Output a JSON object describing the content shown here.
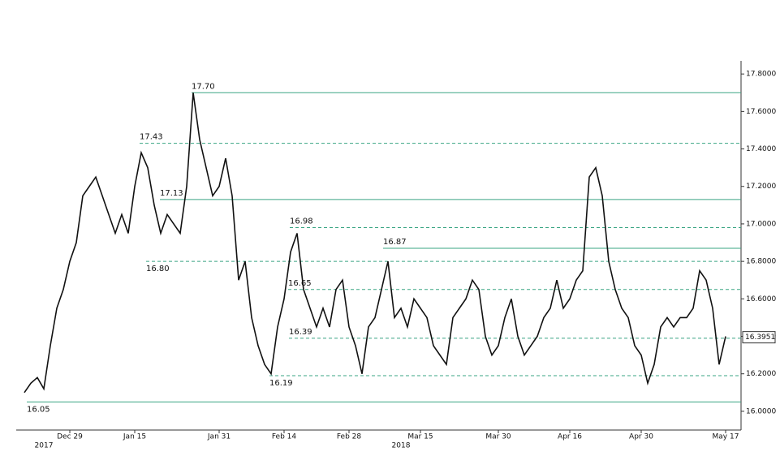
{
  "chart_data": {
    "type": "line",
    "categories": [
      null,
      null,
      null,
      null,
      null,
      null,
      null,
      "Dec 29",
      null,
      null,
      null,
      null,
      null,
      null,
      null,
      null,
      null,
      "Jan 15",
      null,
      null,
      null,
      null,
      null,
      null,
      null,
      null,
      null,
      null,
      null,
      null,
      "Jan 31",
      null,
      null,
      null,
      null,
      null,
      null,
      null,
      null,
      null,
      "Feb 14",
      null,
      null,
      null,
      null,
      null,
      null,
      null,
      null,
      null,
      "Feb 28",
      null,
      null,
      null,
      null,
      null,
      null,
      null,
      null,
      null,
      null,
      "Mar 15",
      null,
      null,
      null,
      null,
      null,
      null,
      null,
      null,
      null,
      null,
      null,
      "Mar 30",
      null,
      null,
      null,
      null,
      null,
      null,
      null,
      null,
      null,
      null,
      "Apr 16",
      null,
      null,
      null,
      null,
      null,
      null,
      null,
      null,
      null,
      null,
      "Apr 30",
      null,
      null,
      null,
      null,
      null,
      null,
      null,
      null,
      null,
      null,
      null,
      null,
      "May 17"
    ],
    "year_categories": [
      null,
      null,
      null,
      "2017",
      null,
      null,
      null,
      null,
      null,
      null,
      null,
      null,
      null,
      null,
      null,
      null,
      null,
      null,
      null,
      null,
      null,
      null,
      null,
      null,
      null,
      null,
      null,
      null,
      null,
      null,
      null,
      null,
      null,
      null,
      null,
      null,
      null,
      null,
      null,
      null,
      null,
      null,
      null,
      null,
      null,
      null,
      null,
      null,
      null,
      null,
      null,
      null,
      null,
      null,
      null,
      null,
      null,
      null,
      "2018",
      null,
      null,
      null,
      null,
      null,
      null,
      null,
      null,
      null,
      null,
      null,
      null,
      null,
      null,
      null,
      null,
      null,
      null,
      null,
      null,
      null,
      null,
      null,
      null,
      null,
      null,
      null,
      null,
      null,
      null,
      null,
      null,
      null,
      null,
      null,
      null,
      null,
      null,
      null,
      null,
      null,
      null,
      null,
      null,
      null,
      null,
      null,
      null,
      null,
      null
    ],
    "series": [
      {
        "color": "#111111",
        "values": [
          16.1,
          16.15,
          16.18,
          16.12,
          16.35,
          16.55,
          16.65,
          16.8,
          16.9,
          17.15,
          17.2,
          17.25,
          17.15,
          17.05,
          16.95,
          17.05,
          16.95,
          17.2,
          17.38,
          17.3,
          17.1,
          16.95,
          17.05,
          17.0,
          16.95,
          17.2,
          17.7,
          17.45,
          17.3,
          17.15,
          17.2,
          17.35,
          17.15,
          16.7,
          16.8,
          16.5,
          16.35,
          16.25,
          16.2,
          16.45,
          16.6,
          16.85,
          16.95,
          16.65,
          16.55,
          16.45,
          16.55,
          16.45,
          16.65,
          16.7,
          16.45,
          16.35,
          16.2,
          16.45,
          16.5,
          16.65,
          16.8,
          16.5,
          16.55,
          16.45,
          16.6,
          16.55,
          16.5,
          16.35,
          16.3,
          16.25,
          16.5,
          16.55,
          16.6,
          16.7,
          16.65,
          16.4,
          16.3,
          16.35,
          16.5,
          16.6,
          16.4,
          16.3,
          16.35,
          16.4,
          16.5,
          16.55,
          16.7,
          16.55,
          16.6,
          16.7,
          16.75,
          17.25,
          17.3,
          17.15,
          16.8,
          16.65,
          16.55,
          16.5,
          16.35,
          16.3,
          16.15,
          16.25,
          16.45,
          16.5,
          16.45,
          16.5,
          16.5,
          16.55,
          16.75,
          16.7,
          16.55,
          16.25,
          16.4
        ]
      }
    ],
    "levels": [
      {
        "value": 17.7,
        "label": "17.70",
        "style": "solid"
      },
      {
        "value": 17.43,
        "label": "17.43",
        "style": "dashed"
      },
      {
        "value": 17.13,
        "label": "17.13",
        "style": "solid"
      },
      {
        "value": 16.98,
        "label": "16.98",
        "style": "dashed"
      },
      {
        "value": 16.87,
        "label": "16.87",
        "style": "solid"
      },
      {
        "value": 16.8,
        "label": "16.80",
        "style": "dashed"
      },
      {
        "value": 16.65,
        "label": "16.65",
        "style": "dashed"
      },
      {
        "value": 16.39,
        "label": "16.39",
        "style": "dashed"
      },
      {
        "value": 16.19,
        "label": "16.19",
        "style": "dashed"
      },
      {
        "value": 16.05,
        "label": "16.05",
        "style": "solid"
      }
    ],
    "level_color": "#3aa583",
    "last_price": 16.3951,
    "ylim": [
      15.9,
      17.87
    ],
    "yticks": [
      {
        "value": 16.0,
        "label": "16.0000"
      },
      {
        "value": 16.2,
        "label": "16.2000"
      },
      {
        "value": 16.4,
        "label": "16.4000"
      },
      {
        "value": 16.6,
        "label": "16.6000"
      },
      {
        "value": 16.8,
        "label": "16.8000"
      },
      {
        "value": 17.0,
        "label": "17.0000"
      },
      {
        "value": 17.2,
        "label": "17.2000"
      },
      {
        "value": 17.4,
        "label": "17.4000"
      },
      {
        "value": 17.6,
        "label": "17.6000"
      },
      {
        "value": 17.8,
        "label": "17.8000"
      }
    ]
  }
}
